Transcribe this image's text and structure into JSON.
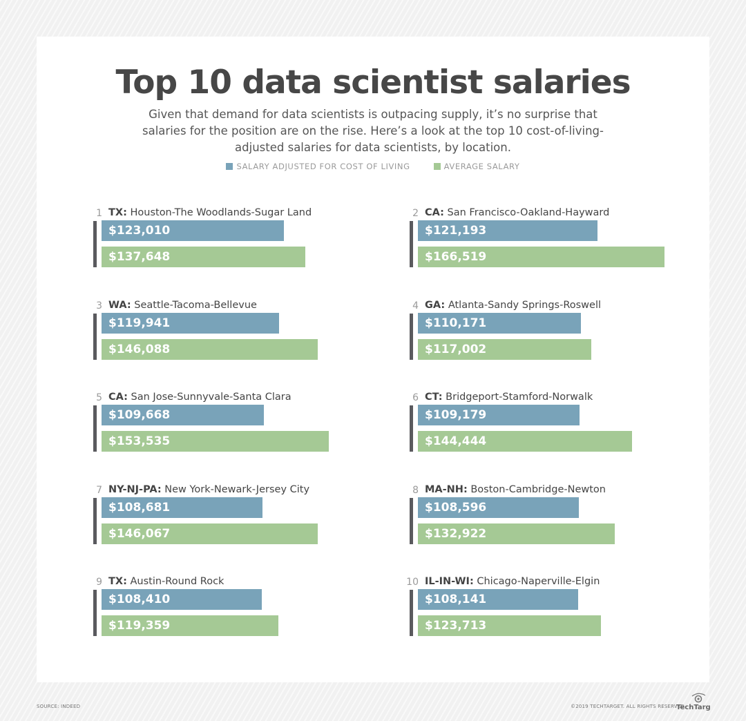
{
  "title": "Top 10 data scientist salaries",
  "subtitle": "Given that demand for data scientists is outpacing supply, it’s no surprise that salaries for the position are on the rise. Here’s a look at the top 10 cost-of-living-adjusted salaries for data scientists, by location.",
  "footer": {
    "source": "SOURCE: INDEED",
    "copyright": "©2019 TECHTARGET. ALL RIGHTS RESERVED",
    "logo": "TechTarget"
  },
  "chart_data": {
    "type": "bar",
    "orientation": "horizontal",
    "title": "Top 10 data scientist salaries",
    "legend_position": "top",
    "colors": {
      "adjusted": "#79a3b9",
      "average": "#a5c995"
    },
    "series_names": {
      "adjusted": "SALARY ADJUSTED FOR COST OF LIVING",
      "average": "AVERAGE SALARY"
    },
    "items": [
      {
        "rank": "1",
        "state": "TX:",
        "city": "Houston-The Woodlands-Sugar Land",
        "adjusted": 123010,
        "average": 137648,
        "adjusted_label": "$123,010",
        "average_label": "$137,648"
      },
      {
        "rank": "2",
        "state": "CA:",
        "city": "San Francisco-Oakland-Hayward",
        "adjusted": 121193,
        "average": 166519,
        "adjusted_label": "$121,193",
        "average_label": "$166,519"
      },
      {
        "rank": "3",
        "state": "WA:",
        "city": "Seattle-Tacoma-Bellevue",
        "adjusted": 119941,
        "average": 146088,
        "adjusted_label": "$119,941",
        "average_label": "$146,088"
      },
      {
        "rank": "4",
        "state": "GA:",
        "city": "Atlanta-Sandy Springs-Roswell",
        "adjusted": 110171,
        "average": 117002,
        "adjusted_label": "$110,171",
        "average_label": "$117,002"
      },
      {
        "rank": "5",
        "state": "CA:",
        "city": "San Jose-Sunnyvale-Santa Clara",
        "adjusted": 109668,
        "average": 153535,
        "adjusted_label": "$109,668",
        "average_label": "$153,535"
      },
      {
        "rank": "6",
        "state": "CT:",
        "city": "Bridgeport-Stamford-Norwalk",
        "adjusted": 109179,
        "average": 144444,
        "adjusted_label": "$109,179",
        "average_label": "$144,444"
      },
      {
        "rank": "7",
        "state": "NY-NJ-PA:",
        "city": "New York-Newark-Jersey City",
        "adjusted": 108681,
        "average": 146067,
        "adjusted_label": "$108,681",
        "average_label": "$146,067"
      },
      {
        "rank": "8",
        "state": "MA-NH:",
        "city": "Boston-Cambridge-Newton",
        "adjusted": 108596,
        "average": 132922,
        "adjusted_label": "$108,596",
        "average_label": "$132,922"
      },
      {
        "rank": "9",
        "state": "TX:",
        "city": "Austin-Round Rock",
        "adjusted": 108410,
        "average": 119359,
        "adjusted_label": "$108,410",
        "average_label": "$119,359"
      },
      {
        "rank": "10",
        "state": "IL-IN-WI:",
        "city": "Chicago-Naperville-Elgin",
        "adjusted": 108141,
        "average": 123713,
        "adjusted_label": "$108,141",
        "average_label": "$123,713"
      }
    ]
  }
}
